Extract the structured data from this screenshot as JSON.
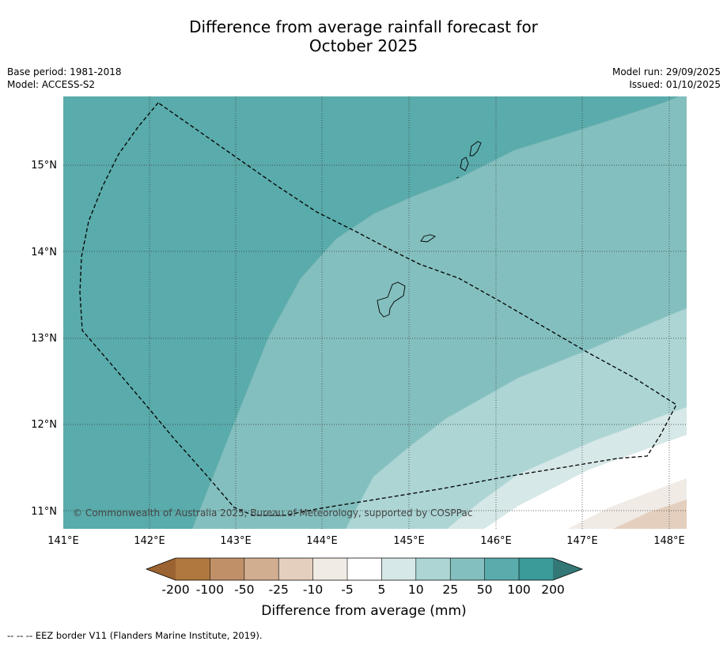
{
  "title": {
    "line1": "Difference from average rainfall forecast for",
    "line2": "October 2025"
  },
  "meta": {
    "base_period": "Base period: 1981-2018",
    "model": "Model: ACCESS-S2",
    "model_run": "Model run: 29/09/2025",
    "issued": "Issued: 01/10/2025"
  },
  "map": {
    "lat_labels": [
      "15°N",
      "14°N",
      "13°N",
      "12°N",
      "11°N"
    ],
    "lon_labels": [
      "141°E",
      "142°E",
      "143°E",
      "144°E",
      "145°E",
      "146°E",
      "147°E",
      "148°E"
    ],
    "copyright": "© Commonwealth of Australia 2025, Bureau of Meteorology, supported by COSPPac",
    "eez_color": "#000000"
  },
  "colorbar": {
    "ticks": [
      "-200",
      "-100",
      "-50",
      "-25",
      "-10",
      "-5",
      "5",
      "10",
      "25",
      "50",
      "100",
      "200"
    ],
    "label": "Difference from average (mm)",
    "colors": {
      "below_min": "#9b6331",
      "neg_200_100": "#b0783e",
      "neg_100_50": "#c09168",
      "neg_50_25": "#d2ae90",
      "neg_25_10": "#e4cfbe",
      "neg_10_5": "#f1ebe6",
      "neg5_pos5": "#ffffff",
      "pos_5_10": "#d6e8e7",
      "pos_10_25": "#acd5d4",
      "pos_25_50": "#83bfbe",
      "pos_50_100": "#5aabab",
      "pos_100_200": "#3a9b99",
      "above_max": "#337876"
    }
  },
  "footnote": "-- -- -- EEZ border V11 (Flanders Marine Institute, 2019)."
}
